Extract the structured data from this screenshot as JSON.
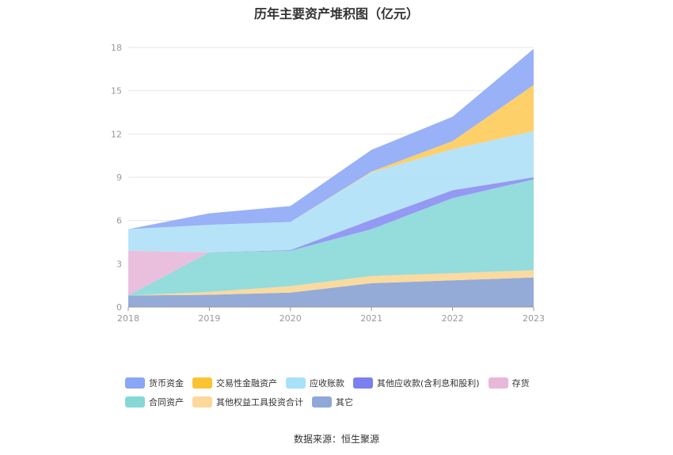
{
  "chart_data": {
    "type": "area",
    "stacked": true,
    "title": "历年主要资产堆积图（亿元）",
    "source": "数据来源：恒生聚源",
    "categories": [
      "2018",
      "2019",
      "2020",
      "2021",
      "2022",
      "2023"
    ],
    "ylim": [
      0,
      18
    ],
    "yticks": [
      "0",
      "3",
      "6",
      "9",
      "12",
      "15",
      "18"
    ],
    "grid": true,
    "legend_position": "bottom",
    "series": [
      {
        "name": "其它",
        "color": "#8EA7D6",
        "values": [
          0.8,
          0.85,
          1.0,
          1.65,
          1.85,
          2.05
        ]
      },
      {
        "name": "其他权益工具投资合计",
        "color": "#FAD89A",
        "values": [
          0.0,
          0.2,
          0.45,
          0.5,
          0.5,
          0.5
        ]
      },
      {
        "name": "合同资产",
        "color": "#8FDADA",
        "values": [
          0.0,
          2.75,
          2.45,
          3.25,
          5.2,
          6.3
        ]
      },
      {
        "name": "存货",
        "color": "#E9BCDC",
        "values": [
          3.1,
          0.0,
          0.0,
          0.0,
          0.0,
          0.0
        ]
      },
      {
        "name": "其他应收款(含利息和股利)",
        "color": "#8E94F2",
        "values": [
          0.0,
          0.0,
          0.05,
          0.65,
          0.55,
          0.15
        ]
      },
      {
        "name": "应收账款",
        "color": "#B3E2F8",
        "values": [
          1.5,
          1.9,
          1.95,
          3.3,
          2.85,
          3.2
        ]
      },
      {
        "name": "交易性金融资产",
        "color": "#FDCE62",
        "values": [
          0.0,
          0.0,
          0.0,
          0.05,
          0.55,
          3.2
        ]
      },
      {
        "name": "货币资金",
        "color": "#92ADF7",
        "values": [
          0.0,
          0.8,
          1.1,
          1.5,
          1.7,
          2.5
        ]
      }
    ]
  },
  "legend": {
    "row1": [
      {
        "label": "货币资金",
        "color": "#8AA6F5"
      },
      {
        "label": "交易性金融资产",
        "color": "#FBC232"
      },
      {
        "label": "应收账款",
        "color": "#A8E1F9"
      },
      {
        "label": "其他应收款(含利息和股利)",
        "color": "#7B7FF0"
      },
      {
        "label": "存货",
        "color": "#E7B8D8"
      }
    ],
    "row2": [
      {
        "label": "合同资产",
        "color": "#86D8D6"
      },
      {
        "label": "其他权益工具投资合计",
        "color": "#FBD99B"
      },
      {
        "label": "其它",
        "color": "#8FA8D8"
      }
    ]
  }
}
